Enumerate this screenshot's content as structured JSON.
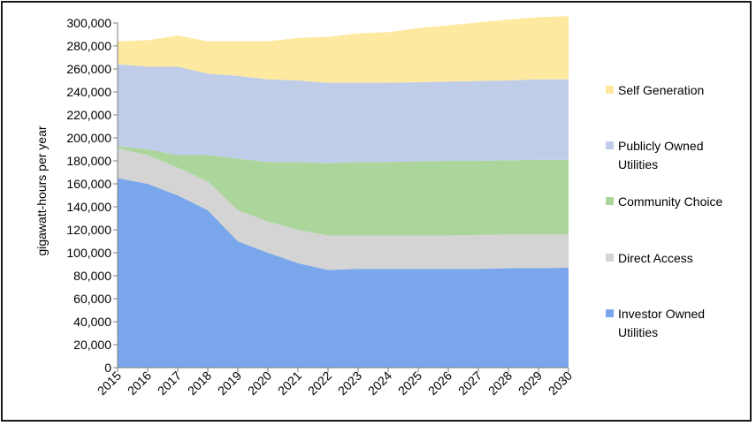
{
  "chart_data": {
    "type": "area",
    "stacked": true,
    "title": "",
    "xlabel": "",
    "ylabel": "gigawatt-hours per year",
    "ylim": [
      0,
      300000
    ],
    "ytick_step": 20000,
    "grid": false,
    "legend_position": "right",
    "x": [
      "2015",
      "2016",
      "2017",
      "2018",
      "2019",
      "2020",
      "2021",
      "2022",
      "2023",
      "2024",
      "2025",
      "2026",
      "2027",
      "2028",
      "2029",
      "2030"
    ],
    "yticks": [
      "0",
      "20,000",
      "40,000",
      "60,000",
      "80,000",
      "100,000",
      "120,000",
      "140,000",
      "160,000",
      "180,000",
      "200,000",
      "220,000",
      "240,000",
      "260,000",
      "280,000",
      "300,000"
    ],
    "series": [
      {
        "name": "Investor Owned Utilities",
        "color": "#7aa7ec",
        "values": [
          165000,
          160000,
          150000,
          137000,
          110000,
          100000,
          91000,
          85000,
          86000,
          86000,
          86000,
          86000,
          86000,
          86500,
          86500,
          87000
        ]
      },
      {
        "name": "Direct Access",
        "color": "#d4d4d4",
        "values": [
          26000,
          25000,
          24000,
          25000,
          27000,
          27000,
          29000,
          30000,
          29000,
          29000,
          29000,
          29000,
          29500,
          29500,
          29500,
          29000
        ]
      },
      {
        "name": "Community Choice",
        "color": "#abd59b",
        "values": [
          2000,
          5000,
          11000,
          23000,
          45000,
          52000,
          59000,
          63000,
          64000,
          64000,
          64500,
          65000,
          64500,
          64500,
          65000,
          65000
        ]
      },
      {
        "name": "Publicly Owned Utilities",
        "color": "#c0cde9",
        "values": [
          71000,
          72000,
          77000,
          71000,
          72000,
          72000,
          71000,
          70000,
          69000,
          69000,
          69000,
          69000,
          69500,
          69500,
          70000,
          70000
        ]
      },
      {
        "name": "Self Generation",
        "color": "#fde99f",
        "values": [
          20000,
          23000,
          27000,
          28000,
          30000,
          33000,
          37000,
          40000,
          43000,
          44000,
          47000,
          49000,
          51000,
          53000,
          54000,
          55000
        ]
      }
    ]
  }
}
